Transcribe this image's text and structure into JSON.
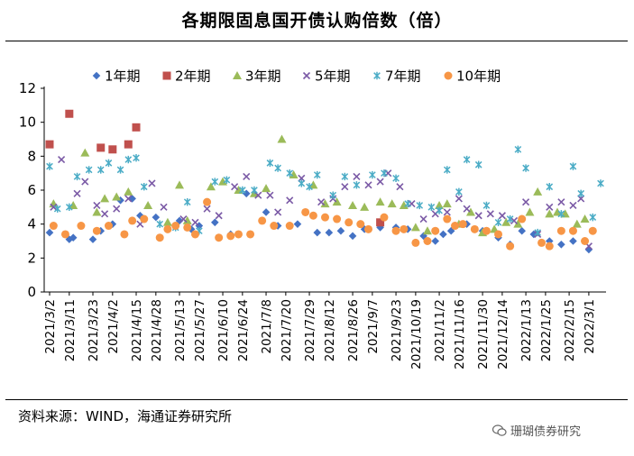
{
  "header": {
    "title": "各期限固息国开债认购倍数（倍）"
  },
  "footer": {
    "source": "资料来源：WIND，海通证券研究所",
    "watermark": "珊瑚债券研究"
  },
  "colors": {
    "y1": "#4472C4",
    "y2": "#C0504D",
    "y3": "#9BBB59",
    "y5": "#7B5AA6",
    "y7": "#4BACC6",
    "y10": "#F79646"
  },
  "chart_data": {
    "type": "scatter",
    "title": "各期限固息国开债认购倍数（倍）",
    "xlabel": "",
    "ylabel": "",
    "ylim": [
      0,
      12
    ],
    "yticks": [
      0,
      2,
      4,
      6,
      8,
      10,
      12
    ],
    "x_index_range": [
      0,
      118
    ],
    "xticks": [
      {
        "i": 0,
        "label": "2021/3/2"
      },
      {
        "i": 5,
        "label": "2021/3/11"
      },
      {
        "i": 11,
        "label": "2021/3/23"
      },
      {
        "i": 16,
        "label": "2021/4/2"
      },
      {
        "i": 22,
        "label": "2021/4/15"
      },
      {
        "i": 27,
        "label": "2021/4/28"
      },
      {
        "i": 33,
        "label": "2021/5/13"
      },
      {
        "i": 38,
        "label": "2021/5/27"
      },
      {
        "i": 44,
        "label": "2021/6/10"
      },
      {
        "i": 49,
        "label": "2021/6/24"
      },
      {
        "i": 55,
        "label": "2021/7/8"
      },
      {
        "i": 60,
        "label": "2021/7/20"
      },
      {
        "i": 66,
        "label": "2021/7/29"
      },
      {
        "i": 71,
        "label": "2021/8/12"
      },
      {
        "i": 77,
        "label": "2021/8/26"
      },
      {
        "i": 82,
        "label": "2021/9/7"
      },
      {
        "i": 88,
        "label": "2021/9/23"
      },
      {
        "i": 93,
        "label": "2021/10/19"
      },
      {
        "i": 99,
        "label": "2021/11/2"
      },
      {
        "i": 104,
        "label": "2021/11/16"
      },
      {
        "i": 110,
        "label": "2021/11/30"
      },
      {
        "i": 115,
        "label": "2021/12/14"
      },
      {
        "i": 121,
        "label": "2022/1/13"
      },
      {
        "i": 126,
        "label": "2022/1/25"
      },
      {
        "i": 132,
        "label": "2022/2/15"
      },
      {
        "i": 137,
        "label": "2022/3/1"
      }
    ],
    "legend": [
      "1年期",
      "2年期",
      "3年期",
      "5年期",
      "7年期",
      "10年期"
    ],
    "series": [
      {
        "name": "1年期",
        "marker": "diamond",
        "color": "#4472C4",
        "points": [
          [
            0,
            3.5
          ],
          [
            5,
            3.1
          ],
          [
            6,
            3.2
          ],
          [
            11,
            3.1
          ],
          [
            13,
            3.6
          ],
          [
            16,
            4.0
          ],
          [
            18,
            5.4
          ],
          [
            21,
            5.5
          ],
          [
            23,
            4.5
          ],
          [
            27,
            4.4
          ],
          [
            33,
            4.2
          ],
          [
            36,
            3.7
          ],
          [
            38,
            3.9
          ],
          [
            42,
            4.1
          ],
          [
            46,
            3.4
          ],
          [
            50,
            5.8
          ],
          [
            55,
            4.7
          ],
          [
            58,
            3.9
          ],
          [
            63,
            4.0
          ],
          [
            68,
            3.5
          ],
          [
            71,
            3.5
          ],
          [
            74,
            3.6
          ],
          [
            77,
            3.3
          ],
          [
            80,
            3.7
          ],
          [
            84,
            3.8
          ],
          [
            88,
            3.8
          ],
          [
            91,
            3.7
          ],
          [
            95,
            3.3
          ],
          [
            98,
            3.0
          ],
          [
            100,
            3.4
          ],
          [
            102,
            3.6
          ],
          [
            106,
            4.0
          ],
          [
            110,
            3.6
          ],
          [
            114,
            3.2
          ],
          [
            117,
            2.8
          ],
          [
            120,
            3.6
          ],
          [
            123,
            3.4
          ],
          [
            127,
            3.0
          ],
          [
            130,
            2.8
          ],
          [
            133,
            3.0
          ],
          [
            137,
            2.5
          ]
        ]
      },
      {
        "name": "2年期",
        "marker": "square",
        "color": "#C0504D",
        "points": [
          [
            0,
            8.7
          ],
          [
            5,
            10.5
          ],
          [
            13,
            8.5
          ],
          [
            16,
            8.4
          ],
          [
            20,
            8.7
          ],
          [
            22,
            9.7
          ],
          [
            84,
            4.1
          ]
        ]
      },
      {
        "name": "3年期",
        "marker": "triangle",
        "color": "#9BBB59",
        "points": [
          [
            1,
            5.2
          ],
          [
            6,
            5.1
          ],
          [
            9,
            8.2
          ],
          [
            12,
            4.7
          ],
          [
            14,
            5.5
          ],
          [
            17,
            5.6
          ],
          [
            20,
            5.9
          ],
          [
            25,
            5.1
          ],
          [
            30,
            4.1
          ],
          [
            33,
            6.3
          ],
          [
            35,
            4.2
          ],
          [
            41,
            6.2
          ],
          [
            44,
            6.5
          ],
          [
            48,
            6.0
          ],
          [
            52,
            5.8
          ],
          [
            55,
            6.1
          ],
          [
            59,
            9.0
          ],
          [
            62,
            6.9
          ],
          [
            67,
            6.3
          ],
          [
            70,
            5.2
          ],
          [
            73,
            5.3
          ],
          [
            77,
            5.1
          ],
          [
            80,
            5.0
          ],
          [
            84,
            5.3
          ],
          [
            87,
            5.2
          ],
          [
            90,
            5.1
          ],
          [
            93,
            3.8
          ],
          [
            96,
            3.6
          ],
          [
            99,
            5.1
          ],
          [
            101,
            5.2
          ],
          [
            104,
            4.0
          ],
          [
            107,
            4.7
          ],
          [
            110,
            3.5
          ],
          [
            113,
            3.7
          ],
          [
            116,
            4.1
          ],
          [
            119,
            4.0
          ],
          [
            122,
            4.7
          ],
          [
            124,
            5.9
          ],
          [
            127,
            4.6
          ],
          [
            129,
            4.7
          ],
          [
            131,
            4.6
          ],
          [
            134,
            4.0
          ],
          [
            136,
            4.3
          ]
        ]
      },
      {
        "name": "5年期",
        "marker": "x",
        "color": "#7B5AA6",
        "points": [
          [
            1,
            5.0
          ],
          [
            3,
            7.8
          ],
          [
            7,
            5.8
          ],
          [
            9,
            6.5
          ],
          [
            12,
            5.1
          ],
          [
            14,
            4.6
          ],
          [
            17,
            4.9
          ],
          [
            20,
            5.5
          ],
          [
            23,
            4.0
          ],
          [
            26,
            6.4
          ],
          [
            29,
            5.0
          ],
          [
            34,
            4.3
          ],
          [
            37,
            4.1
          ],
          [
            40,
            4.9
          ],
          [
            43,
            4.5
          ],
          [
            47,
            6.2
          ],
          [
            50,
            6.8
          ],
          [
            53,
            5.7
          ],
          [
            56,
            5.7
          ],
          [
            58,
            4.7
          ],
          [
            61,
            5.4
          ],
          [
            64,
            6.7
          ],
          [
            69,
            5.3
          ],
          [
            72,
            5.5
          ],
          [
            75,
            6.2
          ],
          [
            78,
            6.8
          ],
          [
            81,
            6.3
          ],
          [
            84,
            6.5
          ],
          [
            86,
            7.0
          ],
          [
            89,
            6.2
          ],
          [
            92,
            5.2
          ],
          [
            95,
            4.3
          ],
          [
            98,
            4.6
          ],
          [
            101,
            4.7
          ],
          [
            104,
            5.5
          ],
          [
            106,
            4.9
          ],
          [
            109,
            4.5
          ],
          [
            112,
            4.6
          ],
          [
            115,
            4.5
          ],
          [
            118,
            4.2
          ],
          [
            121,
            5.3
          ],
          [
            124,
            3.4
          ],
          [
            127,
            5.0
          ],
          [
            130,
            5.3
          ],
          [
            133,
            5.1
          ],
          [
            135,
            5.5
          ],
          [
            137,
            2.7
          ]
        ]
      },
      {
        "name": "7年期",
        "marker": "star",
        "color": "#4BACC6",
        "points": [
          [
            0,
            7.4
          ],
          [
            2,
            4.9
          ],
          [
            5,
            5.0
          ],
          [
            7,
            6.8
          ],
          [
            10,
            7.2
          ],
          [
            13,
            7.2
          ],
          [
            15,
            7.6
          ],
          [
            18,
            7.2
          ],
          [
            20,
            7.8
          ],
          [
            22,
            7.9
          ],
          [
            24,
            6.2
          ],
          [
            28,
            4.0
          ],
          [
            32,
            3.8
          ],
          [
            35,
            5.3
          ],
          [
            38,
            3.6
          ],
          [
            42,
            6.5
          ],
          [
            45,
            6.6
          ],
          [
            49,
            6.0
          ],
          [
            52,
            6.0
          ],
          [
            56,
            7.6
          ],
          [
            58,
            7.3
          ],
          [
            61,
            7.0
          ],
          [
            64,
            6.4
          ],
          [
            66,
            6.2
          ],
          [
            68,
            6.9
          ],
          [
            72,
            5.7
          ],
          [
            75,
            6.8
          ],
          [
            78,
            6.3
          ],
          [
            82,
            6.9
          ],
          [
            85,
            7.0
          ],
          [
            88,
            6.7
          ],
          [
            91,
            5.2
          ],
          [
            94,
            5.1
          ],
          [
            97,
            5.0
          ],
          [
            99,
            4.8
          ],
          [
            101,
            7.2
          ],
          [
            104,
            5.9
          ],
          [
            106,
            7.8
          ],
          [
            109,
            7.5
          ],
          [
            111,
            5.1
          ],
          [
            114,
            4.1
          ],
          [
            117,
            4.3
          ],
          [
            119,
            8.4
          ],
          [
            121,
            7.3
          ],
          [
            124,
            3.5
          ],
          [
            127,
            6.2
          ],
          [
            130,
            4.6
          ],
          [
            133,
            7.4
          ],
          [
            135,
            5.8
          ],
          [
            138,
            4.4
          ],
          [
            140,
            6.4
          ]
        ]
      },
      {
        "name": "10年期",
        "marker": "circle",
        "color": "#F79646",
        "points": [
          [
            1,
            3.9
          ],
          [
            4,
            3.4
          ],
          [
            8,
            3.9
          ],
          [
            12,
            3.6
          ],
          [
            15,
            3.9
          ],
          [
            19,
            3.4
          ],
          [
            21,
            4.2
          ],
          [
            24,
            4.3
          ],
          [
            28,
            3.2
          ],
          [
            30,
            3.7
          ],
          [
            32,
            3.9
          ],
          [
            35,
            3.8
          ],
          [
            37,
            3.4
          ],
          [
            40,
            5.3
          ],
          [
            43,
            3.2
          ],
          [
            46,
            3.3
          ],
          [
            48,
            3.4
          ],
          [
            51,
            3.4
          ],
          [
            54,
            4.2
          ],
          [
            57,
            3.9
          ],
          [
            61,
            3.9
          ],
          [
            65,
            4.7
          ],
          [
            67,
            4.5
          ],
          [
            70,
            4.4
          ],
          [
            73,
            4.3
          ],
          [
            76,
            4.1
          ],
          [
            79,
            4.0
          ],
          [
            81,
            3.7
          ],
          [
            85,
            4.4
          ],
          [
            88,
            3.6
          ],
          [
            90,
            3.7
          ],
          [
            93,
            2.9
          ],
          [
            96,
            3.0
          ],
          [
            98,
            3.6
          ],
          [
            101,
            4.3
          ],
          [
            103,
            3.9
          ],
          [
            105,
            4.0
          ],
          [
            108,
            3.7
          ],
          [
            111,
            3.6
          ],
          [
            114,
            3.4
          ],
          [
            117,
            2.7
          ],
          [
            120,
            4.3
          ],
          [
            125,
            2.9
          ],
          [
            127,
            2.7
          ],
          [
            130,
            3.6
          ],
          [
            133,
            3.6
          ],
          [
            136,
            3.0
          ],
          [
            138,
            3.6
          ]
        ]
      }
    ]
  }
}
